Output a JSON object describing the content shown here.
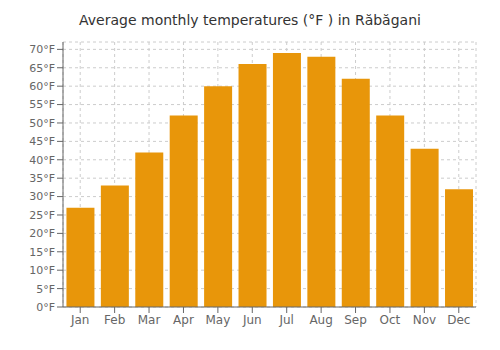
{
  "chart_data": {
    "type": "bar",
    "title": "Average monthly temperatures (°F ) in Răbăgani",
    "categories": [
      "Jan",
      "Feb",
      "Mar",
      "Apr",
      "May",
      "Jun",
      "Jul",
      "Aug",
      "Sep",
      "Oct",
      "Nov",
      "Dec"
    ],
    "values": [
      27,
      33,
      42,
      52,
      60,
      66,
      69,
      68,
      62,
      52,
      43,
      32
    ],
    "color": "#E8960A",
    "ylim": [
      0,
      72
    ],
    "yticks": [
      {
        "value": 0,
        "label": "0°F"
      },
      {
        "value": 5,
        "label": "5°F"
      },
      {
        "value": 10,
        "label": "10°F"
      },
      {
        "value": 15,
        "label": "15°F"
      },
      {
        "value": 20,
        "label": "20°F"
      },
      {
        "value": 25,
        "label": "25°F"
      },
      {
        "value": 30,
        "label": "30°F"
      },
      {
        "value": 35,
        "label": "35°F"
      },
      {
        "value": 40,
        "label": "40°F"
      },
      {
        "value": 45,
        "label": "45°F"
      },
      {
        "value": 50,
        "label": "50°F"
      },
      {
        "value": 55,
        "label": "55°F"
      },
      {
        "value": 60,
        "label": "60°F"
      },
      {
        "value": 65,
        "label": "65°F"
      },
      {
        "value": 70,
        "label": "70°F"
      }
    ],
    "grid": true
  }
}
